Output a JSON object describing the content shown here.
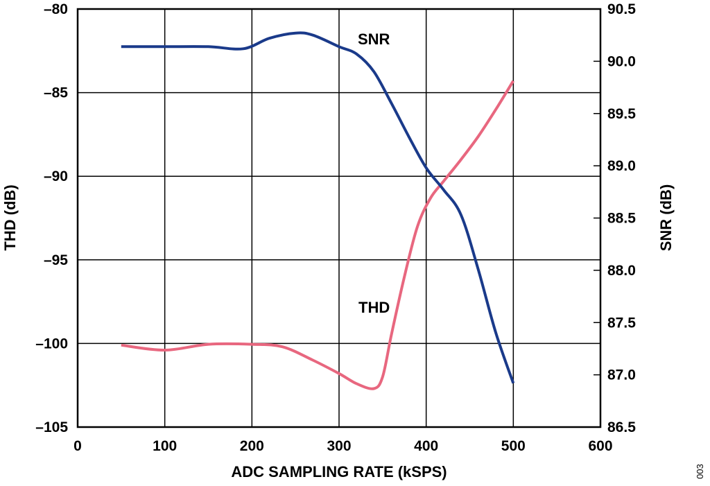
{
  "chart_data": {
    "type": "line",
    "title": "",
    "xlabel": "ADC SAMPLING RATE (kSPS)",
    "ylabel": "THD (dB)",
    "y2label": "SNR (dB)",
    "xlim": [
      0,
      600
    ],
    "ylim": [
      -105,
      -80
    ],
    "y2lim": [
      86.5,
      90.5
    ],
    "x_ticks": [
      0,
      100,
      200,
      300,
      400,
      500,
      600
    ],
    "x_tick_labels": [
      "0",
      "100",
      "200",
      "300",
      "400",
      "500",
      "600"
    ],
    "y_ticks": [
      -80,
      -85,
      -90,
      -95,
      -100,
      -105
    ],
    "y_tick_labels": [
      "–80",
      "–85",
      "–90",
      "–95",
      "–100",
      "–105"
    ],
    "y2_ticks": [
      90.5,
      90.0,
      89.5,
      89.0,
      88.5,
      88.0,
      87.5,
      87.0,
      86.5
    ],
    "y2_tick_labels": [
      "90.5",
      "90.0",
      "89.5",
      "89.0",
      "88.5",
      "88.0",
      "87.5",
      "87.0",
      "86.5"
    ],
    "grid": true,
    "series": [
      {
        "name": "THD",
        "axis": "left",
        "color": "#e8677f",
        "x": [
          50,
          100,
          150,
          200,
          235,
          270,
          300,
          320,
          340,
          350,
          360,
          375,
          390,
          405,
          420,
          440,
          460,
          480,
          500
        ],
        "y": [
          -100.1,
          -100.4,
          -100.05,
          -100.05,
          -100.2,
          -101.0,
          -101.8,
          -102.4,
          -102.7,
          -102.0,
          -99.5,
          -96.0,
          -93.0,
          -91.3,
          -90.3,
          -89.0,
          -87.6,
          -86.0,
          -84.3
        ]
      },
      {
        "name": "SNR",
        "axis": "right",
        "color": "#1a3a8a",
        "x": [
          50,
          100,
          150,
          190,
          220,
          250,
          270,
          300,
          320,
          340,
          360,
          380,
          400,
          420,
          440,
          460,
          480,
          500
        ],
        "y": [
          90.14,
          90.14,
          90.14,
          90.12,
          90.22,
          90.27,
          90.25,
          90.14,
          90.07,
          89.9,
          89.6,
          89.28,
          88.98,
          88.77,
          88.53,
          88.0,
          87.4,
          86.92
        ]
      }
    ],
    "annotations": [
      {
        "text": "SNR",
        "series": "SNR"
      },
      {
        "text": "THD",
        "series": "THD"
      }
    ]
  },
  "figure_id": "003"
}
